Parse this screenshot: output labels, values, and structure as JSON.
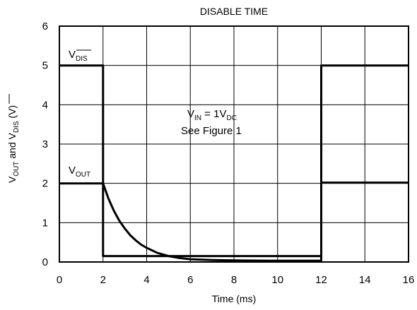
{
  "chart_data": {
    "type": "line",
    "title": "DISABLE TIME",
    "xlabel": "Time (ms)",
    "ylabel": {
      "prefix": "V",
      "sub1": "OUT",
      "mid": " and V",
      "sub2": "DIS",
      "suffix": " (V)"
    },
    "xlim": [
      0,
      16
    ],
    "ylim": [
      0,
      6
    ],
    "xticks": [
      0,
      2,
      4,
      6,
      8,
      10,
      12,
      14,
      16
    ],
    "yticks": [
      0,
      1,
      2,
      3,
      4,
      5,
      6
    ],
    "grid": true,
    "series": [
      {
        "name": "VDIS",
        "label": {
          "main": "V",
          "sub": "DIS",
          "overline": true
        },
        "x": [
          0,
          2,
          2,
          12,
          12,
          16
        ],
        "y": [
          5,
          5,
          0.15,
          0.15,
          5,
          5
        ]
      },
      {
        "name": "VOUT",
        "label": {
          "main": "V",
          "sub": "OUT",
          "overline": false
        },
        "x": [
          0,
          2,
          2.25,
          2.5,
          2.75,
          3,
          3.25,
          3.5,
          3.75,
          4,
          4.5,
          5,
          5.5,
          6,
          7,
          8,
          10,
          12,
          12,
          16
        ],
        "y": [
          2,
          2,
          1.61,
          1.3,
          1.05,
          0.85,
          0.68,
          0.55,
          0.44,
          0.36,
          0.23,
          0.15,
          0.1,
          0.07,
          0.05,
          0.04,
          0.03,
          0.03,
          2.02,
          2.02
        ]
      }
    ],
    "annotations": [
      {
        "text_v": "V",
        "sub_in": "IN",
        "eq": " = 1V",
        "sub_dc": "DC"
      },
      {
        "text": "See Figure 1"
      }
    ]
  }
}
